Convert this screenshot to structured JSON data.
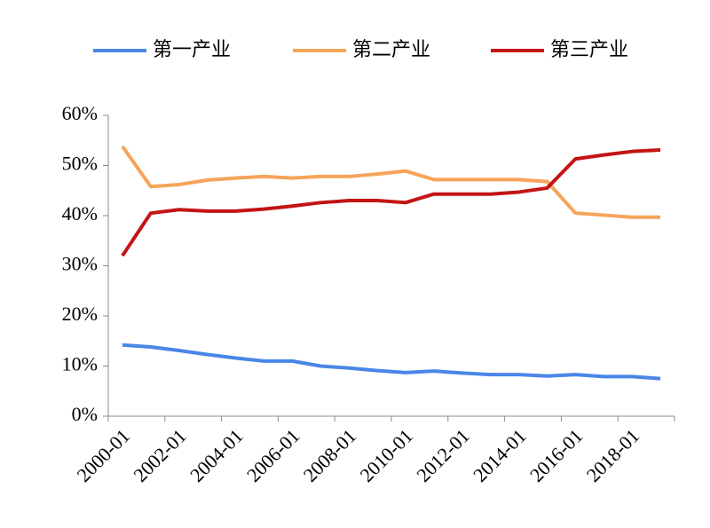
{
  "chart_data": {
    "type": "line",
    "categories": [
      "2000-01",
      null,
      "2002-01",
      null,
      "2004-01",
      null,
      "2006-01",
      null,
      "2008-01",
      null,
      "2010-01",
      null,
      "2012-01",
      null,
      "2014-01",
      null,
      "2016-01",
      null,
      "2018-01",
      null
    ],
    "series": [
      {
        "name": "第一产业",
        "color": "#4a86e8",
        "values": [
          14.2,
          13.8,
          13.1,
          12.3,
          11.6,
          11.0,
          11.0,
          10.0,
          9.6,
          9.1,
          8.7,
          9.0,
          8.6,
          8.3,
          8.3,
          8.0,
          8.3,
          7.9,
          7.9,
          7.5
        ]
      },
      {
        "name": "第二产业",
        "color": "#f6a45a",
        "values": [
          53.8,
          45.8,
          46.2,
          47.1,
          47.5,
          47.8,
          47.5,
          47.8,
          47.8,
          48.3,
          48.9,
          47.2,
          47.2,
          47.2,
          47.2,
          46.8,
          40.5,
          40.1,
          39.7,
          39.7
        ]
      },
      {
        "name": "第三产业",
        "color": "#c41414",
        "values": [
          32.0,
          40.5,
          41.2,
          40.9,
          40.9,
          41.3,
          41.9,
          42.6,
          43.0,
          43.0,
          42.6,
          44.3,
          44.3,
          44.3,
          44.7,
          45.5,
          51.3,
          52.1,
          52.8,
          53.1
        ]
      }
    ],
    "ylim": [
      0,
      60
    ],
    "yticks": [
      {
        "value": 0,
        "label": "0%"
      },
      {
        "value": 10,
        "label": "10%"
      },
      {
        "value": 20,
        "label": "20%"
      },
      {
        "value": 30,
        "label": "30%"
      },
      {
        "value": 40,
        "label": "40%"
      },
      {
        "value": 50,
        "label": "50%"
      },
      {
        "value": 60,
        "label": "60%"
      }
    ],
    "legend": "top"
  }
}
